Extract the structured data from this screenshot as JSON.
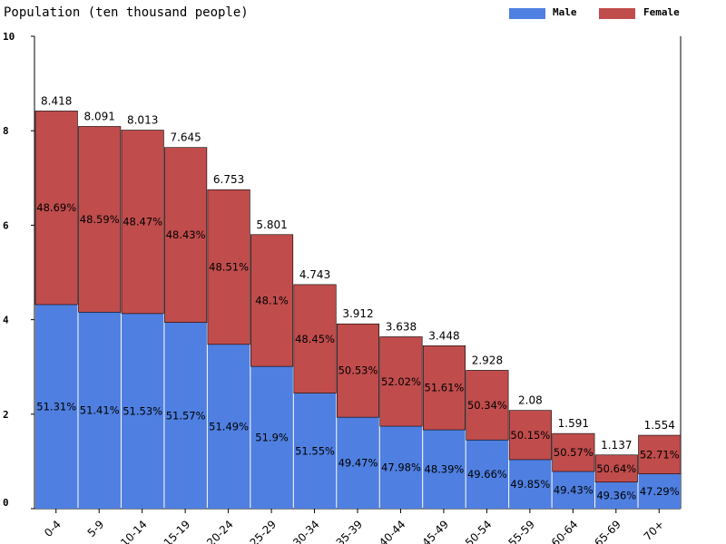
{
  "chart_data": {
    "type": "bar",
    "stacked": true,
    "title": "Population (ten thousand people)",
    "ylim": [
      0,
      10
    ],
    "yticks": [
      0,
      2,
      4,
      6,
      8,
      10
    ],
    "grid": false,
    "legend_position": "top-right",
    "categories": [
      "0-4",
      "5-9",
      "10-14",
      "15-19",
      "20-24",
      "25-29",
      "30-34",
      "35-39",
      "40-44",
      "45-49",
      "50-54",
      "55-59",
      "60-64",
      "65-69",
      "70+"
    ],
    "totals": [
      8.418,
      8.091,
      8.013,
      7.645,
      6.753,
      5.801,
      4.743,
      3.912,
      3.638,
      3.448,
      2.928,
      2.08,
      1.591,
      1.137,
      1.554
    ],
    "series": [
      {
        "name": "Male",
        "color": "#4f7fe0",
        "percent_labels": [
          "51.31%",
          "51.41%",
          "51.53%",
          "51.57%",
          "51.49%",
          "51.9%",
          "51.55%",
          "49.47%",
          "47.98%",
          "48.39%",
          "49.66%",
          "49.85%",
          "49.43%",
          "49.36%",
          "47.29%"
        ],
        "percents": [
          51.31,
          51.41,
          51.53,
          51.57,
          51.49,
          51.9,
          51.55,
          49.47,
          47.98,
          48.39,
          49.66,
          49.85,
          49.43,
          49.36,
          47.29
        ]
      },
      {
        "name": "Female",
        "color": "#c04c4c",
        "percent_labels": [
          "48.69%",
          "48.59%",
          "48.47%",
          "48.43%",
          "48.51%",
          "48.1%",
          "48.45%",
          "50.53%",
          "52.02%",
          "51.61%",
          "50.34%",
          "50.15%",
          "50.57%",
          "50.64%",
          "52.71%"
        ],
        "percents": [
          48.69,
          48.59,
          48.47,
          48.43,
          48.51,
          48.1,
          48.45,
          50.53,
          52.02,
          51.61,
          50.34,
          50.15,
          50.57,
          50.64,
          52.71
        ]
      }
    ]
  }
}
